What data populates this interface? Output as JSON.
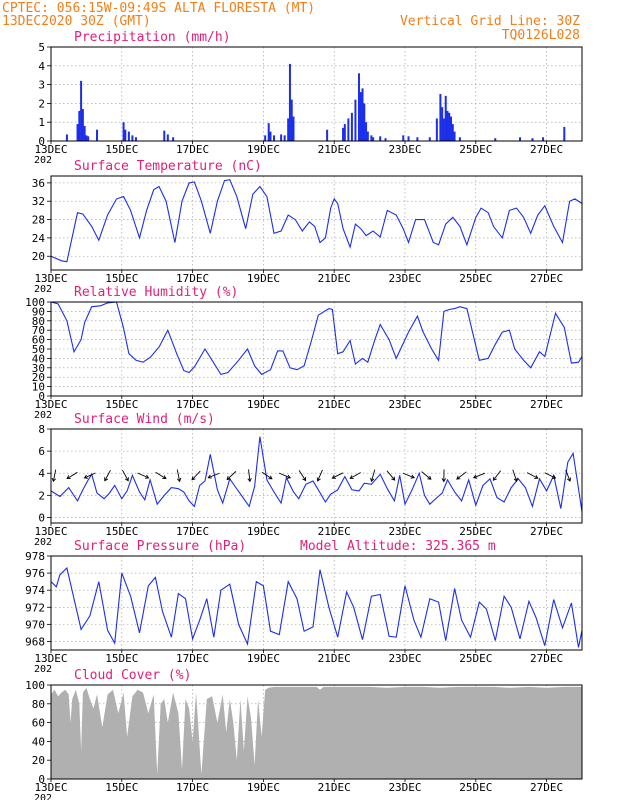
{
  "header": {
    "line1_left": "CPTEC:   056:15W-09:49S  ALTA FLORESTA (MT)",
    "line2_left": "13DEC2020 30Z (GMT)",
    "line2_right": "Vertical Grid Line: 30Z",
    "line3_right": "TQ0126L028"
  },
  "colors": {
    "header": "#f07f1a",
    "title": "#e0207a",
    "series": "#1c2fe8",
    "cloud": "#b0b0b0",
    "arrow": "#000000"
  },
  "x_axis": {
    "ticks": [
      "13DEC",
      "15DEC",
      "17DEC",
      "19DEC",
      "21DEC",
      "23DEC",
      "25DEC",
      "27DEC"
    ],
    "tick_days": [
      0,
      2,
      4,
      6,
      8,
      10,
      12,
      14
    ],
    "range_days": [
      0,
      15
    ],
    "overflow_label": "202"
  },
  "chart_data": [
    {
      "id": "precip",
      "type": "bar",
      "title": "Precipitation (mm/h)",
      "ylim": [
        0,
        5
      ],
      "yticks": [
        0,
        1,
        2,
        3,
        4,
        5
      ],
      "x_days": [
        0.45,
        0.75,
        0.8,
        0.85,
        0.9,
        0.95,
        1.0,
        1.05,
        1.3,
        2.05,
        2.1,
        2.2,
        2.3,
        2.4,
        3.2,
        3.3,
        3.45,
        6.05,
        6.15,
        6.2,
        6.3,
        6.5,
        6.6,
        6.7,
        6.75,
        6.8,
        6.85,
        7.8,
        8.25,
        8.3,
        8.4,
        8.5,
        8.6,
        8.7,
        8.75,
        8.8,
        8.85,
        8.9,
        8.95,
        9.05,
        9.1,
        9.3,
        9.45,
        9.95,
        10.1,
        10.35,
        10.7,
        10.9,
        11.0,
        11.05,
        11.1,
        11.15,
        11.2,
        11.25,
        11.3,
        11.35,
        11.4,
        11.55,
        12.55,
        13.25,
        13.6,
        13.9,
        14.5
      ],
      "values": [
        0.35,
        0.9,
        1.6,
        3.2,
        1.7,
        0.8,
        0.3,
        0.25,
        0.6,
        1.0,
        0.6,
        0.5,
        0.3,
        0.2,
        0.55,
        0.35,
        0.2,
        0.3,
        0.95,
        0.5,
        0.3,
        0.35,
        0.3,
        1.2,
        4.1,
        2.2,
        1.3,
        0.6,
        0.7,
        0.9,
        1.2,
        1.5,
        2.2,
        3.6,
        2.6,
        2.8,
        2.0,
        1.0,
        0.5,
        0.3,
        0.2,
        0.25,
        0.15,
        0.3,
        0.25,
        0.2,
        0.2,
        1.2,
        2.5,
        1.8,
        1.2,
        2.4,
        1.6,
        1.5,
        1.3,
        0.9,
        0.5,
        0.2,
        0.15,
        0.2,
        0.15,
        0.2,
        0.75
      ]
    },
    {
      "id": "temp",
      "type": "line",
      "title": "Surface Temperature (nC)",
      "ylim": [
        17,
        37.5
      ],
      "yticks": [
        20,
        24,
        28,
        32,
        36
      ],
      "x_days": [
        0,
        0.3,
        0.45,
        0.65,
        0.75,
        0.9,
        1.15,
        1.35,
        1.6,
        1.85,
        2.05,
        2.25,
        2.5,
        2.7,
        2.9,
        3.05,
        3.25,
        3.5,
        3.7,
        3.9,
        4.05,
        4.25,
        4.5,
        4.7,
        4.9,
        5.05,
        5.25,
        5.5,
        5.7,
        5.9,
        6.1,
        6.3,
        6.5,
        6.7,
        6.9,
        7.1,
        7.3,
        7.45,
        7.6,
        7.75,
        7.9,
        8.0,
        8.1,
        8.25,
        8.45,
        8.6,
        8.75,
        8.9,
        9.1,
        9.3,
        9.5,
        9.75,
        9.95,
        10.1,
        10.3,
        10.55,
        10.8,
        10.95,
        11.15,
        11.35,
        11.55,
        11.75,
        12.0,
        12.15,
        12.35,
        12.5,
        12.75,
        12.95,
        13.15,
        13.35,
        13.55,
        13.75,
        13.95,
        14.2,
        14.45,
        14.65,
        14.8,
        15.0
      ],
      "values": [
        20,
        19,
        18.8,
        26,
        29.5,
        29.2,
        26.5,
        23.5,
        29,
        32.5,
        33,
        30,
        24,
        30,
        34.5,
        35.2,
        32,
        23,
        32,
        36,
        36.2,
        32,
        25,
        32,
        36.5,
        36.7,
        33,
        26,
        33.5,
        35.2,
        33,
        25,
        25.5,
        29,
        28,
        25.5,
        27.5,
        26.5,
        23,
        24,
        30.5,
        32.5,
        31.5,
        26,
        22,
        27,
        26,
        24.5,
        25.5,
        24.2,
        30,
        29,
        26,
        23,
        28,
        28,
        23,
        22.5,
        27,
        28.5,
        26.5,
        22.5,
        28.5,
        30.5,
        29.5,
        26.5,
        24,
        30,
        30.5,
        28.5,
        25,
        29,
        31,
        26.5,
        23,
        32,
        32.5,
        31.5
      ]
    },
    {
      "id": "rh",
      "type": "line",
      "title": "Relative Humidity (%)",
      "ylim": [
        0,
        100
      ],
      "yticks": [
        0,
        10,
        20,
        30,
        40,
        50,
        60,
        70,
        80,
        90,
        100
      ],
      "x_days": [
        0,
        0.2,
        0.45,
        0.65,
        0.85,
        0.95,
        1.15,
        1.4,
        1.6,
        1.85,
        2.05,
        2.2,
        2.4,
        2.6,
        2.8,
        3.05,
        3.3,
        3.55,
        3.75,
        3.9,
        4.05,
        4.35,
        4.6,
        4.8,
        5.0,
        5.3,
        5.55,
        5.75,
        5.95,
        6.2,
        6.4,
        6.55,
        6.75,
        6.95,
        7.15,
        7.35,
        7.55,
        7.85,
        7.95,
        8.1,
        8.25,
        8.45,
        8.6,
        8.8,
        8.95,
        9.15,
        9.3,
        9.55,
        9.75,
        10.1,
        10.35,
        10.5,
        10.75,
        10.95,
        11.1,
        11.25,
        11.4,
        11.55,
        11.75,
        12.1,
        12.35,
        12.55,
        12.75,
        12.95,
        13.1,
        13.35,
        13.55,
        13.8,
        13.95,
        14.25,
        14.5,
        14.7,
        14.9,
        15.0
      ],
      "values": [
        100,
        98,
        80,
        47,
        60,
        78,
        95,
        96,
        99,
        100,
        72,
        45,
        38,
        36,
        41,
        52,
        70,
        45,
        27,
        25,
        31,
        50,
        35,
        23,
        25,
        38,
        50,
        32,
        23,
        28,
        48,
        48,
        30,
        28,
        32,
        58,
        86,
        93,
        92,
        45,
        47,
        59,
        34,
        40,
        36,
        60,
        76,
        60,
        40,
        68,
        85,
        69,
        50,
        38,
        90,
        92,
        93,
        95,
        93,
        38,
        40,
        55,
        68,
        70,
        50,
        38,
        30,
        47,
        42,
        88,
        73,
        35,
        36,
        42
      ]
    },
    {
      "id": "wind",
      "type": "line",
      "title": "Surface Wind (m/s)",
      "ylim": [
        -0.5,
        8
      ],
      "yticks": [
        0,
        2,
        4,
        6,
        8
      ],
      "x_days": [
        0,
        0.25,
        0.5,
        0.75,
        0.9,
        1.05,
        1.15,
        1.3,
        1.5,
        1.65,
        1.8,
        2.0,
        2.15,
        2.3,
        2.5,
        2.65,
        2.8,
        3.0,
        3.2,
        3.4,
        3.6,
        3.75,
        3.9,
        4.05,
        4.2,
        4.35,
        4.5,
        4.7,
        4.85,
        5.05,
        5.2,
        5.4,
        5.6,
        5.75,
        5.9,
        6.1,
        6.3,
        6.5,
        6.65,
        6.85,
        7.0,
        7.2,
        7.4,
        7.55,
        7.75,
        7.9,
        8.1,
        8.3,
        8.5,
        8.7,
        8.85,
        9.05,
        9.3,
        9.5,
        9.7,
        9.85,
        10.0,
        10.2,
        10.4,
        10.55,
        10.7,
        10.9,
        11.05,
        11.2,
        11.4,
        11.6,
        11.8,
        12.0,
        12.2,
        12.4,
        12.6,
        12.8,
        13.0,
        13.2,
        13.4,
        13.6,
        13.8,
        14.0,
        14.2,
        14.4,
        14.6,
        14.75,
        14.9,
        15.0
      ],
      "values": [
        2.4,
        1.9,
        2.7,
        1.5,
        2.5,
        3.4,
        3.9,
        2.2,
        1.7,
        2.2,
        2.9,
        1.7,
        2.4,
        3.8,
        2.3,
        1.6,
        3.4,
        1.2,
        2.0,
        2.7,
        2.6,
        2.3,
        1.5,
        1.0,
        2.9,
        3.3,
        5.7,
        2.5,
        1.3,
        3.5,
        2.8,
        1.9,
        1.0,
        2.8,
        7.3,
        3.4,
        2.3,
        1.3,
        3.6,
        2.3,
        1.7,
        3.0,
        3.3,
        2.5,
        1.4,
        2.1,
        2.5,
        3.7,
        2.5,
        2.4,
        3.1,
        3.0,
        3.9,
        2.6,
        1.5,
        3.8,
        1.2,
        2.5,
        4.0,
        2.0,
        1.2,
        1.8,
        2.2,
        3.4,
        2.3,
        1.5,
        3.4,
        1.1,
        2.9,
        3.5,
        1.8,
        1.4,
        2.7,
        3.5,
        2.7,
        1.0,
        3.5,
        2.4,
        3.8,
        0.8,
        5.0,
        5.8,
        2.6,
        0.5
      ]
    },
    {
      "id": "pres",
      "type": "line",
      "title": "Surface Pressure (hPa)",
      "annotation": "Model Altitude: 325.365 m",
      "ylim": [
        967,
        978
      ],
      "yticks": [
        968,
        970,
        972,
        974,
        976,
        978
      ],
      "x_days": [
        0,
        0.15,
        0.25,
        0.45,
        0.65,
        0.85,
        1.1,
        1.35,
        1.6,
        1.8,
        2.0,
        2.25,
        2.5,
        2.75,
        2.95,
        3.15,
        3.4,
        3.6,
        3.8,
        4.0,
        4.2,
        4.4,
        4.6,
        4.8,
        5.05,
        5.3,
        5.55,
        5.8,
        6.0,
        6.2,
        6.45,
        6.7,
        6.95,
        7.15,
        7.4,
        7.6,
        7.85,
        8.1,
        8.35,
        8.55,
        8.8,
        9.05,
        9.3,
        9.55,
        9.75,
        10.0,
        10.25,
        10.45,
        10.7,
        10.95,
        11.15,
        11.4,
        11.6,
        11.85,
        12.1,
        12.3,
        12.55,
        12.8,
        13.0,
        13.25,
        13.5,
        13.7,
        13.95,
        14.2,
        14.45,
        14.7,
        14.9,
        15.0
      ],
      "values": [
        975,
        974.4,
        975.8,
        976.6,
        973,
        969.4,
        971,
        975,
        969.3,
        967.8,
        976,
        973.3,
        969,
        974.5,
        975.5,
        971.5,
        968.5,
        973.6,
        973,
        968.3,
        970.5,
        973,
        968.5,
        974,
        974.7,
        970,
        967.7,
        975,
        974.5,
        969.2,
        968.8,
        975,
        973,
        969.2,
        969.7,
        976.4,
        972,
        968.5,
        973.8,
        972,
        968.2,
        973.3,
        973.5,
        968.6,
        968.5,
        974.5,
        970.5,
        968.5,
        973,
        972.6,
        968.1,
        974.2,
        970.5,
        968.5,
        972.6,
        971.8,
        968.1,
        973.3,
        972,
        968.3,
        972.7,
        970.8,
        967.5,
        972.9,
        969.6,
        972.5,
        967.3,
        969.3
      ]
    },
    {
      "id": "cloud",
      "type": "area",
      "title": "Cloud Cover (%)",
      "ylim": [
        0,
        100
      ],
      "yticks": [
        0,
        20,
        40,
        60,
        80,
        100
      ],
      "x_days": [
        0,
        0.1,
        0.2,
        0.3,
        0.4,
        0.5,
        0.55,
        0.6,
        0.7,
        0.8,
        0.85,
        0.9,
        1.0,
        1.1,
        1.2,
        1.3,
        1.45,
        1.6,
        1.75,
        1.9,
        2.05,
        2.15,
        2.3,
        2.45,
        2.6,
        2.75,
        2.9,
        3.0,
        3.1,
        3.2,
        3.3,
        3.45,
        3.6,
        3.7,
        3.8,
        3.9,
        4.0,
        4.1,
        4.25,
        4.4,
        4.55,
        4.7,
        4.85,
        4.95,
        5.05,
        5.15,
        5.25,
        5.35,
        5.45,
        5.55,
        5.65,
        5.75,
        5.85,
        5.95,
        6.05,
        6.15,
        6.3,
        6.5,
        7.0,
        7.5,
        7.6,
        7.7,
        8.0,
        8.5,
        9.0,
        9.5,
        10.0,
        10.5,
        11.0,
        11.5,
        12.0,
        12.5,
        13.0,
        13.5,
        14.0,
        14.5,
        15.0
      ],
      "values": [
        90,
        95,
        88,
        92,
        95,
        90,
        60,
        85,
        95,
        80,
        30,
        92,
        97,
        85,
        75,
        90,
        55,
        90,
        95,
        70,
        92,
        45,
        88,
        95,
        92,
        70,
        90,
        5,
        80,
        85,
        60,
        92,
        70,
        10,
        85,
        75,
        40,
        92,
        5,
        85,
        88,
        60,
        90,
        50,
        85,
        60,
        20,
        85,
        30,
        88,
        65,
        15,
        85,
        45,
        95,
        97,
        98,
        98,
        98,
        98,
        95,
        98,
        98,
        98,
        98,
        97,
        98,
        98,
        97,
        98,
        98,
        98,
        97,
        98,
        97,
        98,
        98
      ]
    }
  ]
}
